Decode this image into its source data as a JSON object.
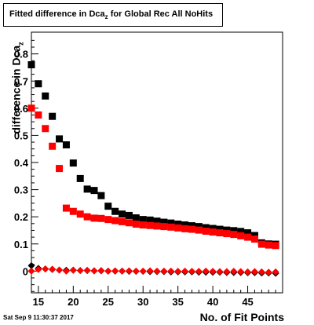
{
  "chart_data": {
    "type": "scatter",
    "title_main": "Fitted difference in Dca",
    "title_sub": "z",
    "title_rest": " for Global Rec All NoHits",
    "xlabel": "No. of Fit Points",
    "ylabel_main": "difference in Dca",
    "ylabel_sub": "z",
    "xlim": [
      14,
      50
    ],
    "ylim": [
      -0.08,
      0.88
    ],
    "xticks": [
      15,
      20,
      25,
      30,
      35,
      40,
      45
    ],
    "yticks": [
      0,
      0.1,
      0.2,
      0.3,
      0.4,
      0.5,
      0.6,
      0.7,
      0.8
    ],
    "grid": false,
    "series": [
      {
        "color": "#000000",
        "marker": "square",
        "x": [
          14,
          15,
          16,
          17,
          18,
          19,
          20,
          21,
          22,
          23,
          24,
          25,
          26,
          27,
          28,
          29,
          30,
          31,
          32,
          33,
          34,
          35,
          36,
          37,
          38,
          39,
          40,
          41,
          42,
          43,
          44,
          45,
          46,
          47,
          48,
          49
        ],
        "y": [
          0.76,
          0.69,
          0.645,
          0.57,
          0.487,
          0.465,
          0.398,
          0.341,
          0.302,
          0.297,
          0.278,
          0.239,
          0.22,
          0.21,
          0.205,
          0.196,
          0.19,
          0.188,
          0.184,
          0.18,
          0.177,
          0.173,
          0.17,
          0.167,
          0.164,
          0.16,
          0.157,
          0.154,
          0.151,
          0.149,
          0.146,
          0.141,
          0.131,
          0.104,
          0.1,
          0.099
        ]
      },
      {
        "color": "#ff0000",
        "marker": "square",
        "x": [
          14,
          15,
          16,
          17,
          18,
          19,
          20,
          21,
          22,
          23,
          24,
          25,
          26,
          27,
          28,
          29,
          30,
          31,
          32,
          33,
          34,
          35,
          36,
          37,
          38,
          39,
          40,
          41,
          42,
          43,
          44,
          45,
          46,
          47,
          48,
          49
        ],
        "y": [
          0.6,
          0.575,
          0.525,
          0.46,
          0.378,
          0.232,
          0.22,
          0.21,
          0.2,
          0.195,
          0.194,
          0.19,
          0.186,
          0.182,
          0.178,
          0.173,
          0.17,
          0.168,
          0.166,
          0.164,
          0.162,
          0.159,
          0.156,
          0.154,
          0.151,
          0.147,
          0.144,
          0.141,
          0.138,
          0.135,
          0.13,
          0.125,
          0.118,
          0.099,
          0.096,
          0.094
        ]
      },
      {
        "color": "#000000",
        "marker": "diamond",
        "x": [
          14,
          15,
          16,
          17,
          18,
          19,
          20,
          21,
          22,
          23,
          24,
          25,
          26,
          27,
          28,
          29,
          30,
          31,
          32,
          33,
          34,
          35,
          36,
          37,
          38,
          39,
          40,
          41,
          42,
          43,
          44,
          45,
          46,
          47,
          48,
          49
        ],
        "y": [
          0.02,
          0.01,
          0.008,
          0.006,
          0.004,
          0.003,
          0.003,
          0.002,
          0.002,
          0.001,
          0.001,
          0.0,
          0.0,
          0.0,
          -0.001,
          -0.001,
          -0.001,
          -0.002,
          -0.002,
          -0.002,
          -0.003,
          -0.003,
          -0.003,
          -0.003,
          -0.004,
          -0.004,
          -0.004,
          -0.004,
          -0.005,
          -0.005,
          -0.005,
          -0.006,
          -0.006,
          -0.007,
          -0.007,
          -0.008
        ]
      },
      {
        "color": "#ff0000",
        "marker": "diamond",
        "x": [
          14,
          15,
          16,
          17,
          18,
          19,
          20,
          21,
          22,
          23,
          24,
          25,
          26,
          27,
          28,
          29,
          30,
          31,
          32,
          33,
          34,
          35,
          36,
          37,
          38,
          39,
          40,
          41,
          42,
          43,
          44,
          45,
          46,
          47,
          48,
          49
        ],
        "y": [
          0.0,
          0.006,
          0.008,
          0.007,
          0.004,
          0.0,
          0.004,
          0.002,
          0.003,
          0.001,
          0.002,
          0.0,
          0.001,
          0.0,
          0.001,
          0.0,
          0.0,
          0.001,
          0.0,
          0.0,
          0.0,
          -0.001,
          0.0,
          -0.001,
          -0.001,
          0.0,
          -0.001,
          -0.002,
          -0.002,
          -0.001,
          -0.002,
          -0.003,
          -0.002,
          -0.003,
          -0.004,
          -0.003
        ]
      }
    ]
  },
  "timestamp": "Sat Sep  9 11:30:37 2017"
}
